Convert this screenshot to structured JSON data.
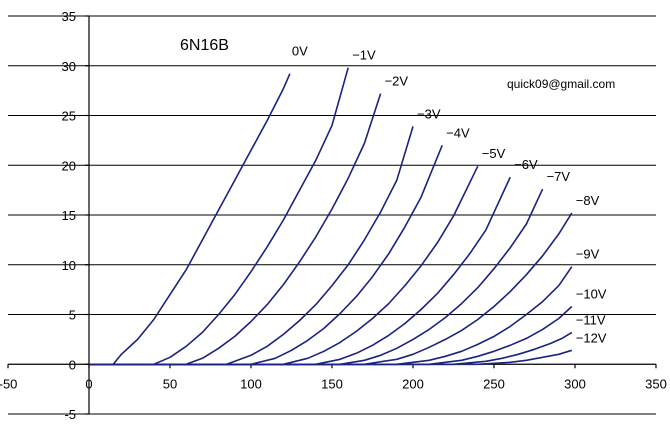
{
  "chart_data": {
    "type": "line",
    "title": "6N16B",
    "annotation": "quick09@gmail.com",
    "xlabel": "",
    "ylabel": "",
    "xlim": [
      -50,
      350
    ],
    "ylim": [
      -5,
      35
    ],
    "x_ticks": [
      -50,
      0,
      50,
      100,
      150,
      200,
      250,
      300,
      350
    ],
    "y_ticks": [
      -5,
      0,
      5,
      10,
      15,
      20,
      25,
      30,
      35
    ],
    "grid": "horizontal",
    "line_color": "#1a237e",
    "series": [
      {
        "name": "0V",
        "x": [
          0,
          15,
          20,
          30,
          40,
          50,
          60,
          70,
          80,
          90,
          100,
          110,
          120,
          124
        ],
        "y": [
          0,
          0,
          1,
          2.5,
          4.5,
          7,
          9.5,
          12.5,
          15.5,
          18.5,
          21.5,
          24.5,
          27.7,
          29.2
        ]
      },
      {
        "name": "−1V",
        "x": [
          0,
          40,
          50,
          60,
          70,
          80,
          90,
          100,
          110,
          120,
          130,
          140,
          150,
          160
        ],
        "y": [
          0,
          0,
          0.7,
          1.8,
          3.2,
          5,
          7,
          9.3,
          11.8,
          14.5,
          17.5,
          20.5,
          24,
          29.8
        ]
      },
      {
        "name": "−2V",
        "x": [
          0,
          60,
          70,
          80,
          90,
          100,
          110,
          120,
          130,
          140,
          150,
          160,
          170,
          180
        ],
        "y": [
          0,
          0,
          0.6,
          1.6,
          2.8,
          4.3,
          6,
          8,
          10.3,
          12.8,
          15.6,
          18.7,
          22.2,
          27.2
        ]
      },
      {
        "name": "−3V",
        "x": [
          0,
          85,
          100,
          110,
          120,
          130,
          140,
          150,
          160,
          170,
          180,
          190,
          200
        ],
        "y": [
          0,
          0,
          0.9,
          1.8,
          3,
          4.4,
          6,
          7.9,
          10,
          12.5,
          15.3,
          18.5,
          23.9
        ]
      },
      {
        "name": "−4V",
        "x": [
          0,
          100,
          115,
          125,
          135,
          145,
          155,
          165,
          175,
          185,
          195,
          205,
          218
        ],
        "y": [
          0,
          0,
          0.6,
          1.4,
          2.4,
          3.6,
          5.1,
          6.8,
          8.8,
          11.1,
          13.8,
          16.8,
          22
        ]
      },
      {
        "name": "−5V",
        "x": [
          0,
          120,
          135,
          145,
          155,
          165,
          175,
          185,
          195,
          205,
          215,
          225,
          240
        ],
        "y": [
          0,
          0,
          0.6,
          1.3,
          2.2,
          3.3,
          4.6,
          6.1,
          7.9,
          9.9,
          12.2,
          14.9,
          19.9
        ]
      },
      {
        "name": "−6V",
        "x": [
          0,
          140,
          155,
          165,
          175,
          185,
          195,
          205,
          215,
          225,
          235,
          245,
          260
        ],
        "y": [
          0,
          0,
          0.5,
          1.1,
          1.9,
          2.9,
          4.1,
          5.5,
          7.1,
          9,
          11.1,
          13.5,
          18.8
        ]
      },
      {
        "name": "−7V",
        "x": [
          0,
          155,
          170,
          180,
          190,
          200,
          210,
          220,
          230,
          240,
          250,
          260,
          270,
          280
        ],
        "y": [
          0,
          0,
          0.4,
          0.9,
          1.6,
          2.5,
          3.5,
          4.7,
          6.1,
          7.7,
          9.6,
          11.7,
          14.1,
          17.6
        ]
      },
      {
        "name": "−8V",
        "x": [
          0,
          170,
          190,
          200,
          210,
          220,
          230,
          240,
          250,
          260,
          270,
          280,
          290,
          298
        ],
        "y": [
          0,
          0,
          0.5,
          1,
          1.7,
          2.5,
          3.4,
          4.5,
          5.8,
          7.3,
          9,
          10.9,
          13.1,
          15.2
        ]
      },
      {
        "name": "−9V",
        "x": [
          0,
          190,
          210,
          220,
          230,
          240,
          250,
          260,
          270,
          280,
          290,
          298
        ],
        "y": [
          0,
          0,
          0.4,
          0.8,
          1.3,
          2,
          2.8,
          3.8,
          5,
          6.3,
          7.9,
          9.8
        ]
      },
      {
        "name": "−10V",
        "x": [
          0,
          210,
          230,
          240,
          250,
          260,
          270,
          280,
          290,
          298
        ],
        "y": [
          0,
          0,
          0.4,
          0.8,
          1.3,
          1.9,
          2.6,
          3.5,
          4.6,
          5.8
        ]
      },
      {
        "name": "−11V",
        "x": [
          0,
          225,
          245,
          255,
          265,
          275,
          285,
          292,
          298
        ],
        "y": [
          0,
          0,
          0.3,
          0.6,
          1,
          1.5,
          2.1,
          2.6,
          3.2
        ]
      },
      {
        "name": "−12V",
        "x": [
          0,
          240,
          260,
          270,
          280,
          290,
          298
        ],
        "y": [
          0,
          0,
          0.2,
          0.4,
          0.7,
          1,
          1.4
        ]
      }
    ]
  }
}
